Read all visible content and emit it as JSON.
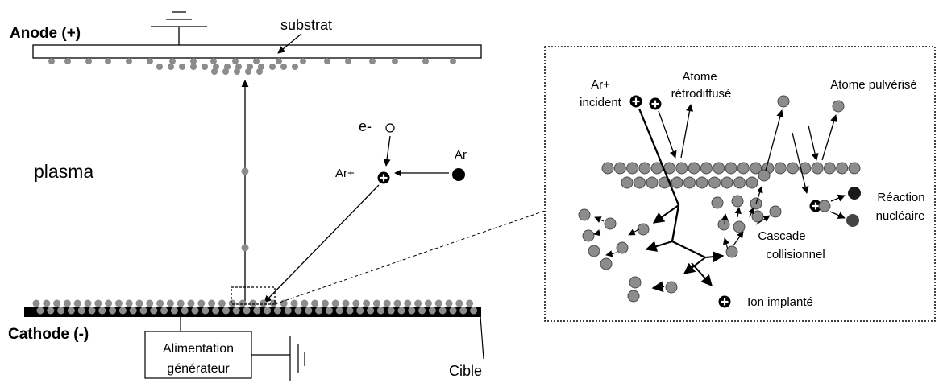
{
  "labels": {
    "anode": "Anode (+)",
    "substrat": "substrat",
    "plasma": "plasma",
    "electron": "e-",
    "ar_ion": "Ar+",
    "ar": "Ar",
    "cathode": "Cathode (-)",
    "power_line1": "Alimentation",
    "power_line2": "générateur",
    "cible": "Cible"
  },
  "zoom_labels": {
    "ar_incident_line1": "Ar+",
    "ar_incident_line2": "incident",
    "backscattered_line1": "Atome",
    "backscattered_line2": "rétrodiffusé",
    "sputtered": "Atome pulvérisé",
    "nuclear_line1": "Réaction",
    "nuclear_line2": "nucléaire",
    "cascade_line1": "Cascade",
    "cascade_line2": "collisionnel",
    "implanted": "Ion implanté"
  },
  "colors": {
    "atom_fill": "#8c8c8c",
    "atom_stroke": "#4a4a4a",
    "target_black": "#000000",
    "dark_atom": "#1a1a1a",
    "darkgray_atom": "#444444"
  }
}
